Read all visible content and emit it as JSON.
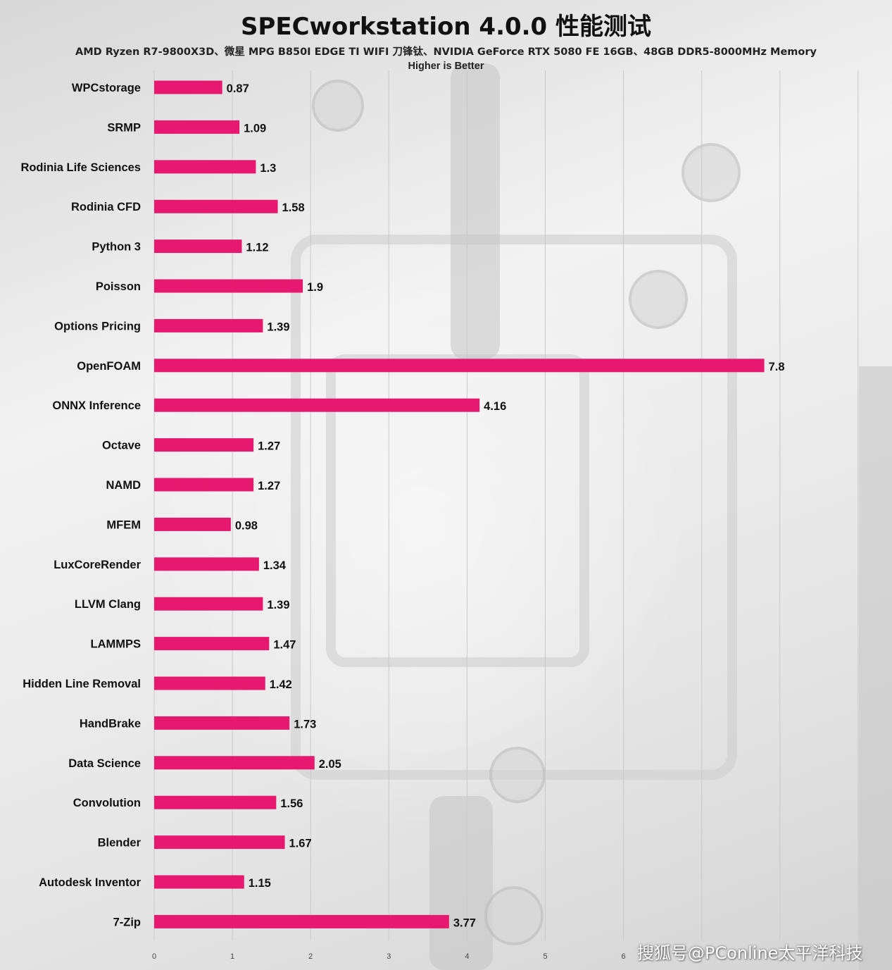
{
  "title": "SPECworkstation 4.0.0 性能测试",
  "subtitle": "AMD Ryzen R7-9800X3D、微星 MPG B850I EDGE TI WIFI 刀锋钛、NVIDIA GeForce RTX 5080 FE 16GB、48GB DDR5-8000MHz Memory",
  "subtitle2": "Higher is Better",
  "watermark": "搜狐号@PConline太平洋科技",
  "colors": {
    "bar": "#E6186F",
    "grid": "#c9c9c9",
    "text": "#111111"
  },
  "chart_data": {
    "type": "bar",
    "orientation": "horizontal",
    "categories": [
      "WPCstorage",
      "SRMP",
      "Rodinia Life Sciences",
      "Rodinia CFD",
      "Python 3",
      "Poisson",
      "Options Pricing",
      "OpenFOAM",
      "ONNX Inference",
      "Octave",
      "NAMD",
      "MFEM",
      "LuxCoreRender",
      "LLVM Clang",
      "LAMMPS",
      "Hidden Line Removal",
      "HandBrake",
      "Data Science",
      "Convolution",
      "Blender",
      "Autodesk Inventor",
      "7-Zip"
    ],
    "values": [
      0.87,
      1.09,
      1.3,
      1.58,
      1.12,
      1.9,
      1.39,
      7.8,
      4.16,
      1.27,
      1.27,
      0.98,
      1.34,
      1.39,
      1.47,
      1.42,
      1.73,
      2.05,
      1.56,
      1.67,
      1.15,
      3.77
    ],
    "xlim": [
      0,
      9
    ],
    "xticks": [
      "0",
      "1",
      "2",
      "3",
      "4",
      "5",
      "6"
    ],
    "grid": true,
    "data_labels": true
  }
}
